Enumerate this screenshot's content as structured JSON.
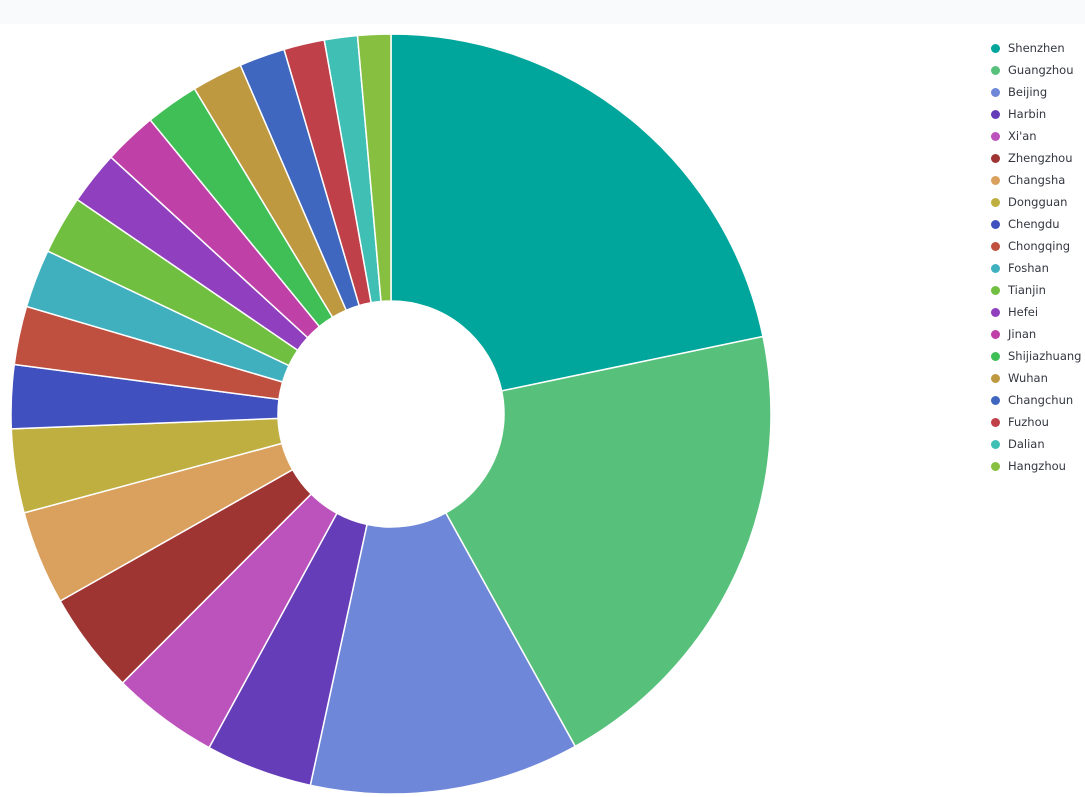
{
  "chart_data": {
    "type": "pie",
    "donut": true,
    "legend_position": "right",
    "categories": [
      "Shenzhen",
      "Guangzhou",
      "Beijing",
      "Harbin",
      "Xi'an",
      "Zhengzhou",
      "Changsha",
      "Dongguan",
      "Chengdu",
      "Chongqing",
      "Foshan",
      "Tianjin",
      "Hefei",
      "Jinan",
      "Shijiazhuang",
      "Wuhan",
      "Changchun",
      "Fuzhou",
      "Dalian",
      "Hangzhou"
    ],
    "values": [
      20.1,
      18.7,
      10.6,
      4.2,
      4.2,
      4.0,
      3.7,
      3.3,
      2.5,
      2.3,
      2.3,
      2.3,
      2.1,
      2.1,
      2.1,
      2.0,
      1.8,
      1.6,
      1.3,
      1.3
    ],
    "colors": [
      "#00a69b",
      "#57c17b",
      "#6f87d8",
      "#663db8",
      "#bc52bc",
      "#9e3533",
      "#daa05d",
      "#bfaf40",
      "#4050bf",
      "#bf5040",
      "#40b0bf",
      "#70bf40",
      "#9040bf",
      "#bf40a7",
      "#40bf57",
      "#bf9940",
      "#4067bf",
      "#bf4048",
      "#40bfb5",
      "#87bf40"
    ]
  }
}
